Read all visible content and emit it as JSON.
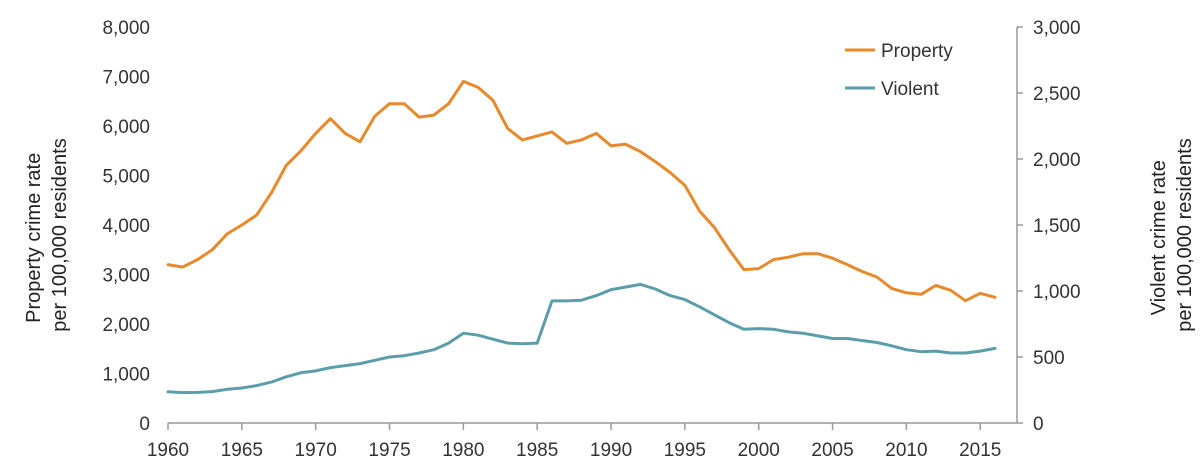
{
  "chart_data": {
    "type": "line",
    "x": [
      1960,
      1961,
      1962,
      1963,
      1964,
      1965,
      1966,
      1967,
      1968,
      1969,
      1970,
      1971,
      1972,
      1973,
      1974,
      1975,
      1976,
      1977,
      1978,
      1979,
      1980,
      1981,
      1982,
      1983,
      1984,
      1985,
      1986,
      1987,
      1988,
      1989,
      1990,
      1991,
      1992,
      1993,
      1994,
      1995,
      1996,
      1997,
      1998,
      1999,
      2000,
      2001,
      2002,
      2003,
      2004,
      2005,
      2006,
      2007,
      2008,
      2009,
      2010,
      2011,
      2012,
      2013,
      2014,
      2015,
      2016
    ],
    "series": [
      {
        "name": "Property",
        "axis": "left",
        "color": "#e8892b",
        "values": [
          3200,
          3150,
          3300,
          3500,
          3820,
          4000,
          4200,
          4650,
          5200,
          5500,
          5850,
          6150,
          5850,
          5680,
          6200,
          6450,
          6450,
          6180,
          6220,
          6450,
          6900,
          6780,
          6520,
          5950,
          5720,
          5800,
          5880,
          5650,
          5720,
          5850,
          5600,
          5630,
          5480,
          5280,
          5060,
          4800,
          4280,
          3950,
          3500,
          3100,
          3120,
          3300,
          3350,
          3420,
          3420,
          3330,
          3200,
          3060,
          2950,
          2720,
          2630,
          2600,
          2780,
          2680,
          2470,
          2620,
          2540
        ]
      },
      {
        "name": "Violent",
        "axis": "right",
        "color": "#5b9eaa",
        "values": [
          236,
          230,
          232,
          238,
          255,
          265,
          283,
          310,
          350,
          380,
          395,
          420,
          435,
          450,
          475,
          500,
          510,
          530,
          555,
          605,
          680,
          665,
          635,
          605,
          600,
          605,
          925,
          925,
          930,
          965,
          1010,
          1030,
          1050,
          1015,
          965,
          935,
          880,
          820,
          760,
          710,
          715,
          710,
          690,
          680,
          660,
          640,
          640,
          625,
          610,
          585,
          555,
          540,
          545,
          530,
          530,
          545,
          565
        ]
      }
    ],
    "xticks": [
      "1960",
      "1965",
      "1970",
      "1975",
      "1980",
      "1985",
      "1990",
      "1995",
      "2000",
      "2005",
      "2010",
      "2015"
    ],
    "ylim_left": [
      0,
      8000
    ],
    "ylim_right": [
      0,
      3000
    ],
    "yticks_left": [
      "0",
      "1,000",
      "2,000",
      "3,000",
      "4,000",
      "5,000",
      "6,000",
      "7,000",
      "8,000"
    ],
    "yticks_right": [
      "0",
      "500",
      "1,000",
      "1,500",
      "2,000",
      "2,500",
      "3,000"
    ],
    "ylabel_left": [
      "Property crime rate",
      "per 100,000 residents"
    ],
    "ylabel_right": [
      "Violent crime rate",
      "per 100,000 residents"
    ],
    "legend": {
      "position": "top-right",
      "items": [
        {
          "label": "Property",
          "color": "#e8892b"
        },
        {
          "label": "Violent",
          "color": "#5b9eaa"
        }
      ]
    },
    "grid": false,
    "title": ""
  }
}
